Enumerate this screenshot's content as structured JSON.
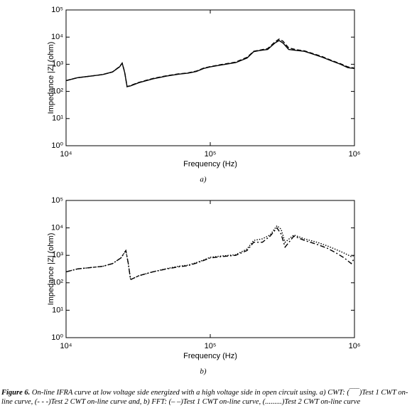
{
  "chart_data": [
    {
      "type": "line",
      "panel_label": "a)",
      "x_label": "Frequency (Hz)",
      "y_label": "Impedance |Z| (ohm)",
      "log_x": true,
      "log_y": true,
      "xlim": [
        10000,
        1000000
      ],
      "ylim": [
        1,
        100000
      ],
      "xticks": [
        {
          "value": 10000,
          "label": "10⁴"
        },
        {
          "value": 100000,
          "label": "10⁵"
        },
        {
          "value": 1000000,
          "label": "10⁶"
        }
      ],
      "yticks": [
        {
          "value": 1,
          "label": "10⁰"
        },
        {
          "value": 10,
          "label": "10¹"
        },
        {
          "value": 100,
          "label": "10²"
        },
        {
          "value": 1000,
          "label": "10³"
        },
        {
          "value": 10000,
          "label": "10⁴"
        },
        {
          "value": 100000,
          "label": "10⁵"
        }
      ],
      "x": [
        10000,
        12000,
        15000,
        18000,
        21000,
        23500,
        24500,
        25500,
        26500,
        28000,
        32000,
        40000,
        50000,
        60000,
        70000,
        80000,
        90000,
        100000,
        120000,
        150000,
        180000,
        200000,
        220000,
        250000,
        280000,
        300000,
        320000,
        350000,
        400000,
        450000,
        500000,
        600000,
        700000,
        800000,
        900000,
        1000000
      ],
      "series": [
        {
          "color": "#000000",
          "dash": "solid",
          "values": [
            250,
            320,
            370,
            420,
            520,
            800,
            1100,
            500,
            150,
            160,
            210,
            290,
            370,
            430,
            470,
            540,
            700,
            800,
            950,
            1150,
            1700,
            2900,
            3200,
            3500,
            6000,
            7500,
            6000,
            3500,
            3200,
            3000,
            2500,
            1800,
            1300,
            1000,
            750,
            700
          ]
        },
        {
          "color": "#000000",
          "dash": "dashed",
          "values": [
            250,
            320,
            370,
            420,
            520,
            820,
            1100,
            520,
            150,
            165,
            215,
            300,
            380,
            440,
            480,
            560,
            720,
            820,
            980,
            1200,
            1800,
            3000,
            3300,
            3800,
            6500,
            8500,
            7000,
            4000,
            3400,
            3100,
            2600,
            1900,
            1350,
            1050,
            800,
            720
          ]
        }
      ]
    },
    {
      "type": "line",
      "panel_label": "b)",
      "x_label": "Frequency  (Hz)",
      "y_label": "Impedance |Z| (ohm)",
      "log_x": true,
      "log_y": true,
      "xlim": [
        10000,
        1000000
      ],
      "ylim": [
        1,
        100000
      ],
      "xticks": [
        {
          "value": 10000,
          "label": "10⁴"
        },
        {
          "value": 100000,
          "label": "10⁵"
        },
        {
          "value": 1000000,
          "label": "10⁶"
        }
      ],
      "yticks": [
        {
          "value": 1,
          "label": "10⁰"
        },
        {
          "value": 10,
          "label": "10¹"
        },
        {
          "value": 100,
          "label": "10²"
        },
        {
          "value": 1000,
          "label": "10³"
        },
        {
          "value": 10000,
          "label": "10⁴"
        },
        {
          "value": 100000,
          "label": "10⁵"
        }
      ],
      "x": [
        10000,
        12000,
        15000,
        18000,
        21000,
        24000,
        26000,
        27000,
        28000,
        32000,
        40000,
        50000,
        60000,
        70000,
        80000,
        90000,
        100000,
        120000,
        150000,
        180000,
        200000,
        230000,
        260000,
        290000,
        310000,
        330000,
        380000,
        450000,
        550000,
        650000,
        750000,
        850000,
        950000,
        1000000
      ],
      "series": [
        {
          "color": "#000000",
          "dash": "dashdot",
          "values": [
            250,
            320,
            360,
            400,
            500,
            800,
            1500,
            500,
            130,
            180,
            250,
            320,
            380,
            420,
            520,
            650,
            800,
            900,
            1000,
            1500,
            3000,
            3000,
            5000,
            10000,
            6000,
            2000,
            5000,
            3500,
            2500,
            1800,
            1200,
            800,
            500,
            800
          ]
        },
        {
          "color": "#000000",
          "dash": "dotted",
          "values": [
            250,
            320,
            360,
            400,
            500,
            800,
            1500,
            500,
            130,
            180,
            250,
            330,
            400,
            440,
            540,
            680,
            850,
            950,
            1050,
            1700,
            3500,
            4000,
            5500,
            12000,
            9000,
            3000,
            5500,
            4000,
            3000,
            2200,
            1600,
            1200,
            900,
            1000
          ]
        }
      ]
    }
  ],
  "caption": {
    "label": "Figure 6.",
    "text": "On-line IFRA curve at low voltage side energized with a high voltage side in open circuit using. a) CWT: (‾‾‾‾)Test 1 CWT on-line curve, (- - -)Test 2 CWT on-line curve and, b) FFT: (– –)Test 1 CWT on-line curve, (.........)Test 2 CWT on-line curve"
  }
}
